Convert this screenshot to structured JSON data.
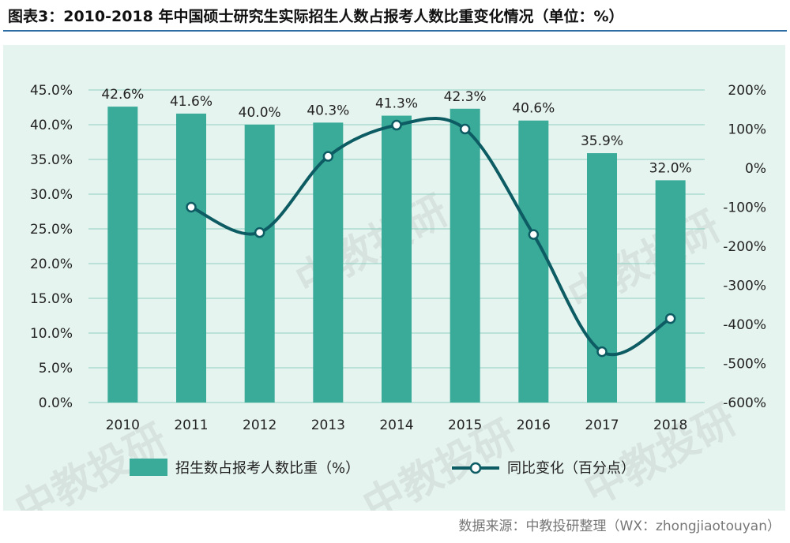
{
  "header": {
    "title": "图表3：2010-2018 年中国硕士研究生实际招生人数占报考人数比重变化情况（单位：%）"
  },
  "footer": {
    "source": "数据来源：中教投研整理（WX：zhongjiaotouyan）"
  },
  "watermark": "中教投研",
  "colors": {
    "bar": "#3aaa99",
    "line": "#0d5c63",
    "panel": "#e6f4ef",
    "grid": "#8fcfc0",
    "title_rule": "#2e6da4"
  },
  "chart_data": {
    "type": "bar",
    "categories": [
      "2010",
      "2011",
      "2012",
      "2013",
      "2014",
      "2015",
      "2016",
      "2017",
      "2018"
    ],
    "series": [
      {
        "name": "招生数占报考人数比重（%）",
        "type": "bar",
        "axis": "left",
        "values": [
          42.6,
          41.6,
          40.0,
          40.3,
          41.3,
          42.3,
          40.6,
          35.9,
          32.0
        ],
        "data_labels": [
          "42.6%",
          "41.6%",
          "40.0%",
          "40.3%",
          "41.3%",
          "42.3%",
          "40.6%",
          "35.9%",
          "32.0%"
        ]
      },
      {
        "name": "同比变化（百分点）",
        "type": "line",
        "axis": "right",
        "values": [
          null,
          -100,
          -165,
          30,
          110,
          100,
          -170,
          -470,
          -385
        ]
      }
    ],
    "y_left": {
      "ylim": [
        0,
        45
      ],
      "ticks": [
        0,
        5,
        10,
        15,
        20,
        25,
        30,
        35,
        40,
        45
      ],
      "tick_labels": [
        "0.0%",
        "5.0%",
        "10.0%",
        "15.0%",
        "20.0%",
        "25.0%",
        "30.0%",
        "35.0%",
        "40.0%",
        "45.0%"
      ]
    },
    "y_right": {
      "ylim": [
        -600,
        200
      ],
      "ticks": [
        -600,
        -500,
        -400,
        -300,
        -200,
        -100,
        0,
        100,
        200
      ],
      "tick_labels": [
        "-600%",
        "-500%",
        "-400%",
        "-300%",
        "-200%",
        "-100%",
        "0%",
        "100%",
        "200%"
      ]
    },
    "grid": true,
    "legend_position": "bottom"
  }
}
